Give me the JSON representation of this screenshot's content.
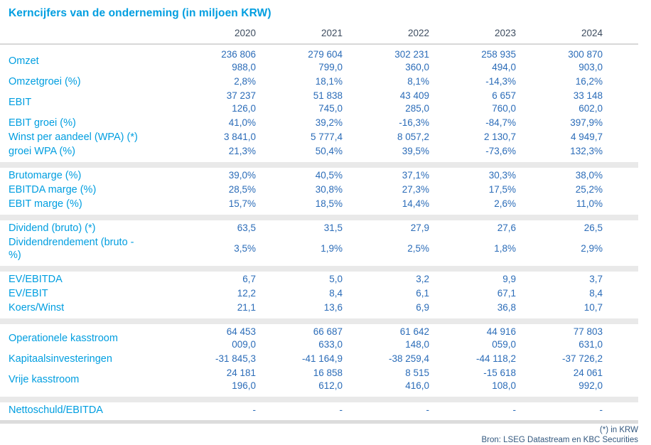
{
  "title": "Kerncijfers van de onderneming (in miljoen KRW)",
  "table": {
    "year_headers": [
      "2020",
      "2021",
      "2022",
      "2023",
      "2024"
    ],
    "sections": [
      {
        "rows": [
          {
            "label": "Omzet",
            "values": [
              "236 806\n988,0",
              "279 604\n799,0",
              "302 231\n360,0",
              "258 935\n494,0",
              "300 870\n903,0"
            ]
          },
          {
            "label": "Omzetgroei (%)",
            "values": [
              "2,8%",
              "18,1%",
              "8,1%",
              "-14,3%",
              "16,2%"
            ]
          },
          {
            "label": "EBIT",
            "values": [
              "37 237\n126,0",
              "51 838\n745,0",
              "43 409\n285,0",
              "6 657\n760,0",
              "33 148\n602,0"
            ]
          },
          {
            "label": "EBIT groei (%)",
            "values": [
              "41,0%",
              "39,2%",
              "-16,3%",
              "-84,7%",
              "397,9%"
            ]
          },
          {
            "label": "Winst per aandeel (WPA) (*)",
            "values": [
              "3 841,0",
              "5 777,4",
              "8 057,2",
              "2 130,7",
              "4 949,7"
            ]
          },
          {
            "label": "groei WPA (%)",
            "values": [
              "21,3%",
              "50,4%",
              "39,5%",
              "-73,6%",
              "132,3%"
            ]
          }
        ]
      },
      {
        "rows": [
          {
            "label": "Brutomarge (%)",
            "values": [
              "39,0%",
              "40,5%",
              "37,1%",
              "30,3%",
              "38,0%"
            ]
          },
          {
            "label": "EBITDA marge (%)",
            "values": [
              "28,5%",
              "30,8%",
              "27,3%",
              "17,5%",
              "25,2%"
            ]
          },
          {
            "label": "EBIT marge (%)",
            "values": [
              "15,7%",
              "18,5%",
              "14,4%",
              "2,6%",
              "11,0%"
            ]
          }
        ]
      },
      {
        "rows": [
          {
            "label": "Dividend (bruto) (*)",
            "values": [
              "63,5",
              "31,5",
              "27,9",
              "27,6",
              "26,5"
            ]
          },
          {
            "label": "Dividendrendement (bruto -\n%)",
            "values": [
              "3,5%",
              "1,9%",
              "2,5%",
              "1,8%",
              "2,9%"
            ]
          }
        ]
      },
      {
        "rows": [
          {
            "label": "EV/EBITDA",
            "values": [
              "6,7",
              "5,0",
              "3,2",
              "9,9",
              "3,7"
            ]
          },
          {
            "label": "EV/EBIT",
            "values": [
              "12,2",
              "8,4",
              "6,1",
              "67,1",
              "8,4"
            ]
          },
          {
            "label": "Koers/Winst",
            "values": [
              "21,1",
              "13,6",
              "6,9",
              "36,8",
              "10,7"
            ]
          }
        ]
      },
      {
        "rows": [
          {
            "label": "Operationele kasstroom",
            "values": [
              "64 453\n009,0",
              "66 687\n633,0",
              "61 642\n148,0",
              "44 916\n059,0",
              "77 803\n631,0"
            ]
          },
          {
            "label": "Kapitaalsinvesteringen",
            "values": [
              "-31 845,3",
              "-41 164,9",
              "-38 259,4",
              "-44 118,2",
              "-37 726,2"
            ]
          },
          {
            "label": "Vrije kasstroom",
            "values": [
              "24 181\n196,0",
              "16 858\n612,0",
              "8 515\n416,0",
              "-15 618\n108,0",
              "24 061\n992,0"
            ]
          }
        ]
      },
      {
        "rows": [
          {
            "label": "Nettoschuld/EBITDA",
            "values": [
              "-",
              "-",
              "-",
              "-",
              "-"
            ]
          }
        ]
      }
    ]
  },
  "footer": {
    "note": "(*) in KRW",
    "source": "Bron: LSEG Datastream en KBC Securities"
  },
  "colors": {
    "accent_blue": "#009EE0",
    "value_blue": "#2B6CB8",
    "year_header_slate": "#3D4C5F",
    "footer_blue": "#33587F",
    "rule_gray": "#D8D8D8",
    "band_gray": "#E9E9E9"
  }
}
